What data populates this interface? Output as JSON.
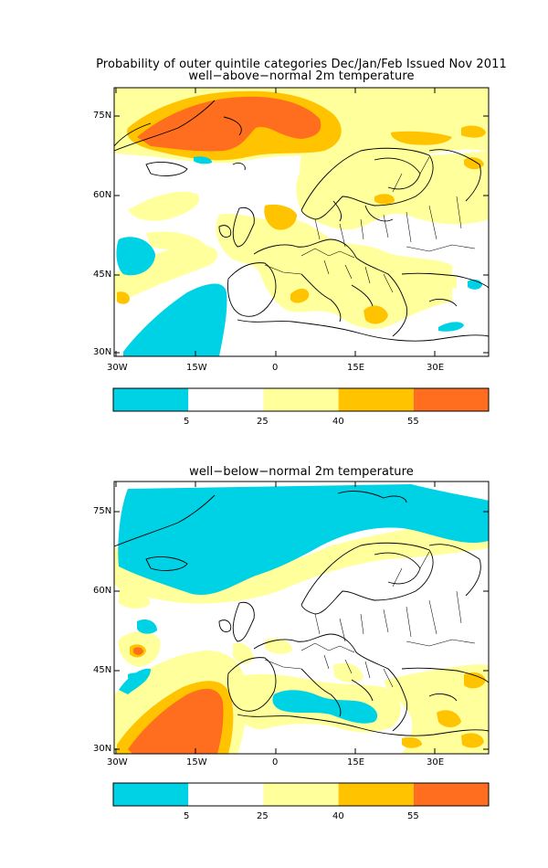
{
  "title": "Probability of outer quintile categories Dec/Jan/Feb Issued Nov 2011",
  "panels": [
    {
      "subtitle": "well−above−normal 2m temperature",
      "lat_labels": [
        "75N",
        "60N",
        "45N",
        "30N"
      ],
      "lon_labels": [
        "30W",
        "15W",
        "0",
        "15E",
        "30E"
      ],
      "colorbar_labels": [
        "5",
        "25",
        "40",
        "55"
      ]
    },
    {
      "subtitle": "well−below−normal 2m temperature",
      "lat_labels": [
        "75N",
        "60N",
        "45N",
        "30N"
      ],
      "lon_labels": [
        "30W",
        "15W",
        "0",
        "15E",
        "30E"
      ],
      "colorbar_labels": [
        "5",
        "25",
        "40",
        "55"
      ]
    }
  ],
  "legend": {
    "bins": [
      "<5",
      "5-25",
      "25-40",
      "40-55",
      ">55"
    ],
    "colors": [
      "#00d2e6",
      "#ffffff",
      "#ffff9b",
      "#ffc300",
      "#ff6e1e"
    ]
  },
  "map_extent": {
    "lon": [
      -30,
      40
    ],
    "lat": [
      30,
      80
    ]
  }
}
